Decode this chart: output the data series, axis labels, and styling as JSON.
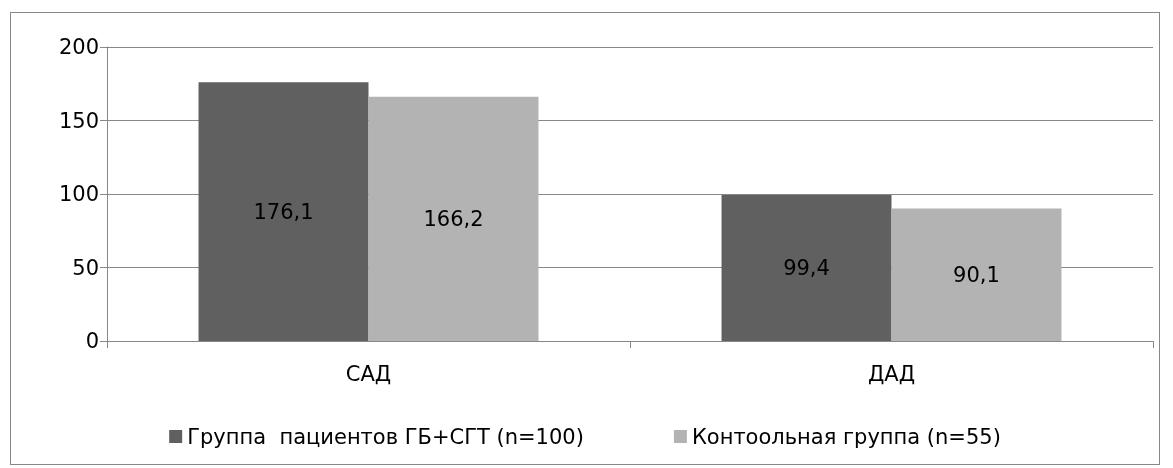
{
  "chart_data": {
    "type": "bar",
    "categories": [
      "САД",
      "ДАД"
    ],
    "series": [
      {
        "name": "Группа  пациентов ГБ+СГТ (n=100)",
        "color": "#606060",
        "values": [
          176.1,
          99.4
        ],
        "value_labels": [
          "176,1",
          "99,4"
        ]
      },
      {
        "name": "Контоольная группа (n=55)",
        "color": "#b3b3b3",
        "values": [
          166.2,
          90.1
        ],
        "value_labels": [
          "166,2",
          "90,1"
        ]
      }
    ],
    "ylim": [
      0,
      200
    ],
    "yticks": [
      0,
      50,
      100,
      150,
      200
    ],
    "grid": "y",
    "legend": "bottom"
  }
}
